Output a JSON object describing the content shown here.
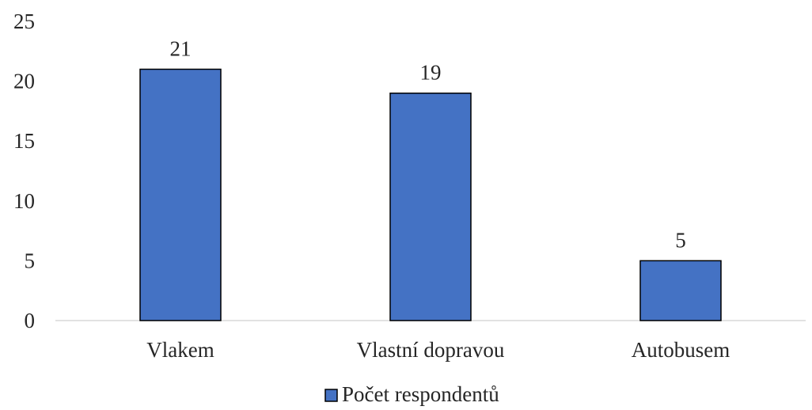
{
  "chart_data": {
    "type": "bar",
    "categories": [
      "Vlakem",
      "Vlastní dopravou",
      "Autobusem"
    ],
    "series": [
      {
        "name": "Počet respondentů",
        "values": [
          21,
          19,
          5
        ],
        "color": "#4472C4"
      }
    ],
    "data_labels": [
      "21",
      "19",
      "5"
    ],
    "yticks": [
      "0",
      "5",
      "10",
      "15",
      "20",
      "25"
    ],
    "ylim": [
      0,
      25
    ],
    "grid": false,
    "legend": "bottom-center",
    "bar_outline_color": "#000000",
    "axis_color": "#D9D9D9"
  }
}
